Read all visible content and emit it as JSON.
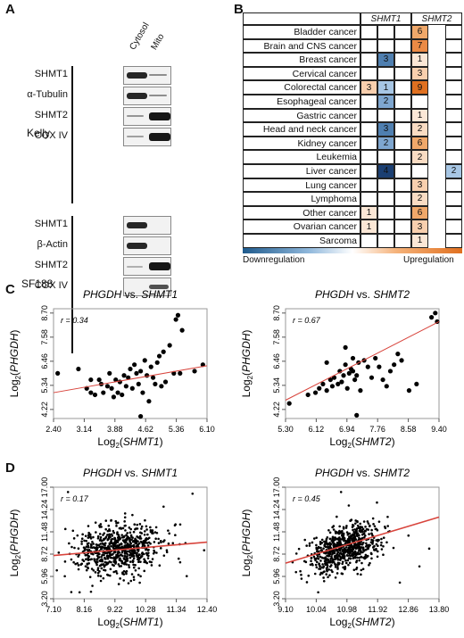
{
  "panel_labels": {
    "a": "A",
    "b": "B",
    "c": "C",
    "d": "D"
  },
  "panel_a": {
    "columns": [
      "Cytosol",
      "Mito"
    ],
    "groups": [
      {
        "name": "Kelly",
        "rows": [
          {
            "label": "SHMT1",
            "bands": [
              0.85,
              0.25
            ]
          },
          {
            "label": "α-Tubulin",
            "bands": [
              0.85,
              0.25
            ]
          },
          {
            "label": "SHMT2",
            "bands": [
              0.2,
              0.95
            ]
          },
          {
            "label": "COX IV",
            "bands": [
              0.15,
              0.95
            ]
          }
        ]
      },
      {
        "name": "SF188",
        "rows": [
          {
            "label": "SHMT1",
            "bands": [
              0.85,
              0.0
            ]
          },
          {
            "label": "β-Actin",
            "bands": [
              0.85,
              0.0
            ]
          },
          {
            "label": "SHMT2",
            "bands": [
              0.05,
              0.95
            ]
          },
          {
            "label": "COX IV",
            "bands": [
              0.0,
              0.6
            ]
          }
        ]
      }
    ]
  },
  "panel_b": {
    "col_headers": [
      "SHMT1",
      "SHMT2"
    ],
    "rows": [
      {
        "label": "Bladder cancer",
        "cells": [
          null,
          null,
          null,
          {
            "v": "6",
            "c": "#f0a86a"
          },
          null
        ]
      },
      {
        "label": "Brain and CNS cancer",
        "cells": [
          null,
          null,
          null,
          {
            "v": "7",
            "c": "#eb8a45"
          },
          null
        ]
      },
      {
        "label": "Breast cancer",
        "cells": [
          null,
          {
            "v": "3",
            "c": "#4f7fb0"
          },
          null,
          {
            "v": "1",
            "c": "#fbe7d6"
          },
          null
        ]
      },
      {
        "label": "Cervical cancer",
        "cells": [
          null,
          null,
          null,
          {
            "v": "3",
            "c": "#f8cfae"
          },
          null
        ]
      },
      {
        "label": "Colorectal cancer",
        "cells": [
          {
            "v": "3",
            "c": "#f8cfae"
          },
          {
            "v": "1",
            "c": "#a7c6e4"
          },
          null,
          {
            "v": "9",
            "c": "#e07020"
          },
          null
        ]
      },
      {
        "label": "Esophageal cancer",
        "cells": [
          null,
          {
            "v": "2",
            "c": "#7ea6cf"
          },
          null,
          null,
          null
        ]
      },
      {
        "label": "Gastric cancer",
        "cells": [
          null,
          null,
          null,
          {
            "v": "1",
            "c": "#fbe7d6"
          },
          null
        ]
      },
      {
        "label": "Head and neck cancer",
        "cells": [
          null,
          {
            "v": "3",
            "c": "#4f7fb0"
          },
          null,
          {
            "v": "2",
            "c": "#f9dcc3"
          },
          null
        ]
      },
      {
        "label": "Kidney cancer",
        "cells": [
          null,
          {
            "v": "2",
            "c": "#7ea6cf"
          },
          null,
          {
            "v": "6",
            "c": "#f0a86a"
          },
          null
        ]
      },
      {
        "label": "Leukemia",
        "cells": [
          null,
          null,
          null,
          {
            "v": "2",
            "c": "#f9dcc3"
          },
          null
        ]
      },
      {
        "label": "Liver cancer",
        "cells": [
          null,
          {
            "v": "4",
            "c": "#1b3f72"
          },
          null,
          null,
          {
            "v": "2",
            "c": "#a7c6e4"
          }
        ]
      },
      {
        "label": "Lung cancer",
        "cells": [
          null,
          null,
          null,
          {
            "v": "3",
            "c": "#f8cfae"
          },
          null
        ]
      },
      {
        "label": "Lymphoma",
        "cells": [
          null,
          null,
          null,
          {
            "v": "2",
            "c": "#f9dcc3"
          },
          null
        ]
      },
      {
        "label": "Other cancer",
        "cells": [
          {
            "v": "1",
            "c": "#fbe7d6"
          },
          null,
          null,
          {
            "v": "6",
            "c": "#f0a86a"
          },
          null
        ]
      },
      {
        "label": "Ovarian cancer",
        "cells": [
          {
            "v": "1",
            "c": "#fbe7d6"
          },
          null,
          null,
          {
            "v": "3",
            "c": "#f8cfae"
          },
          null
        ]
      },
      {
        "label": "Sarcoma",
        "cells": [
          null,
          null,
          null,
          {
            "v": "1",
            "c": "#fbe7d6"
          },
          null
        ]
      }
    ],
    "legend": {
      "low": "Downregulation",
      "high": "Upregulation",
      "colors": [
        "#1e5a8c",
        "#ffffff",
        "#e07020"
      ]
    }
  },
  "chart_data": [
    {
      "type": "scatter",
      "id": "c1",
      "title_parts": [
        "PHGDH",
        " vs. ",
        "SHMT1"
      ],
      "xlabel_pre": "Log",
      "xlabel_sub": "2",
      "xlabel_gene": "SHMT1",
      "ylabel_pre": "Log",
      "ylabel_sub": "2",
      "ylabel_gene": "PHGDH",
      "r_label": "r = 0.34",
      "xticks": [
        "2.40",
        "3.14",
        "3.88",
        "4.62",
        "5.36",
        "6.10"
      ],
      "xlim": [
        2.4,
        6.1
      ],
      "yticks": [
        "4.22",
        "5.34",
        "6.46",
        "7.58",
        "8.70"
      ],
      "ylim": [
        3.8,
        8.9
      ],
      "regression": [
        [
          2.4,
          5.0
        ],
        [
          6.1,
          6.25
        ]
      ],
      "points": [
        [
          2.5,
          5.9
        ],
        [
          3.0,
          6.1
        ],
        [
          3.2,
          5.2
        ],
        [
          3.3,
          5.0
        ],
        [
          3.4,
          4.9
        ],
        [
          3.5,
          5.6
        ],
        [
          3.55,
          5.4
        ],
        [
          3.6,
          5.0
        ],
        [
          3.7,
          5.3
        ],
        [
          3.75,
          5.9
        ],
        [
          3.8,
          5.2
        ],
        [
          3.85,
          4.8
        ],
        [
          3.9,
          5.6
        ],
        [
          3.95,
          5.0
        ],
        [
          4.0,
          5.5
        ],
        [
          4.05,
          4.9
        ],
        [
          4.1,
          5.8
        ],
        [
          4.15,
          5.3
        ],
        [
          4.2,
          5.7
        ],
        [
          4.25,
          6.1
        ],
        [
          4.3,
          5.2
        ],
        [
          4.35,
          6.3
        ],
        [
          4.4,
          5.9
        ],
        [
          4.45,
          5.4
        ],
        [
          4.5,
          6.0
        ],
        [
          4.55,
          5.0
        ],
        [
          4.6,
          6.5
        ],
        [
          4.65,
          5.8
        ],
        [
          4.7,
          4.6
        ],
        [
          4.75,
          6.2
        ],
        [
          4.8,
          5.7
        ],
        [
          4.85,
          5.4
        ],
        [
          4.9,
          6.4
        ],
        [
          4.95,
          6.7
        ],
        [
          5.0,
          5.3
        ],
        [
          5.05,
          6.9
        ],
        [
          5.1,
          5.5
        ],
        [
          5.2,
          7.2
        ],
        [
          5.3,
          5.9
        ],
        [
          5.35,
          8.4
        ],
        [
          5.4,
          8.6
        ],
        [
          5.45,
          5.9
        ],
        [
          5.5,
          7.9
        ],
        [
          5.8,
          6.0
        ],
        [
          6.0,
          6.3
        ],
        [
          4.5,
          3.9
        ],
        [
          3.3,
          5.6
        ]
      ]
    },
    {
      "type": "scatter",
      "id": "c2",
      "title_parts": [
        "PHGDH",
        " vs. ",
        "SHMT2"
      ],
      "xlabel_pre": "Log",
      "xlabel_sub": "2",
      "xlabel_gene": "SHMT2",
      "ylabel_pre": "Log",
      "ylabel_sub": "2",
      "ylabel_gene": "PHGDH",
      "r_label": "r = 0.67",
      "xticks": [
        "5.30",
        "6.12",
        "6.94",
        "7.76",
        "8.58",
        "9.40"
      ],
      "xlim": [
        5.3,
        9.4
      ],
      "yticks": [
        "4.22",
        "5.34",
        "6.46",
        "7.58",
        "8.70"
      ],
      "ylim": [
        3.8,
        8.9
      ],
      "regression": [
        [
          5.3,
          4.65
        ],
        [
          9.4,
          8.3
        ]
      ],
      "points": [
        [
          5.4,
          4.5
        ],
        [
          5.9,
          4.9
        ],
        [
          6.1,
          5.0
        ],
        [
          6.2,
          5.2
        ],
        [
          6.3,
          5.4
        ],
        [
          6.4,
          5.1
        ],
        [
          6.5,
          5.6
        ],
        [
          6.55,
          5.3
        ],
        [
          6.6,
          5.7
        ],
        [
          6.7,
          5.4
        ],
        [
          6.75,
          6.0
        ],
        [
          6.8,
          5.5
        ],
        [
          6.85,
          5.8
        ],
        [
          6.9,
          6.3
        ],
        [
          6.95,
          5.2
        ],
        [
          7.0,
          5.9
        ],
        [
          7.05,
          6.1
        ],
        [
          7.1,
          6.0
        ],
        [
          7.15,
          5.6
        ],
        [
          7.2,
          5.8
        ],
        [
          7.25,
          6.4
        ],
        [
          7.3,
          5.1
        ],
        [
          7.4,
          6.5
        ],
        [
          7.5,
          6.2
        ],
        [
          7.6,
          5.7
        ],
        [
          7.7,
          6.6
        ],
        [
          7.8,
          6.2
        ],
        [
          7.9,
          5.6
        ],
        [
          8.0,
          5.3
        ],
        [
          8.1,
          6.0
        ],
        [
          8.2,
          6.3
        ],
        [
          8.3,
          6.8
        ],
        [
          8.4,
          6.5
        ],
        [
          8.6,
          5.1
        ],
        [
          8.8,
          5.4
        ],
        [
          9.2,
          8.5
        ],
        [
          9.3,
          8.7
        ],
        [
          9.35,
          8.3
        ],
        [
          7.2,
          3.95
        ],
        [
          6.9,
          7.1
        ],
        [
          6.4,
          6.4
        ],
        [
          7.1,
          6.6
        ]
      ]
    },
    {
      "type": "scatter",
      "id": "d1",
      "title_parts": [
        "PHGDH",
        " vs. ",
        "SHMT1"
      ],
      "xlabel_pre": "Log",
      "xlabel_sub": "2",
      "xlabel_gene": "SHMT1",
      "ylabel_pre": "Log",
      "ylabel_sub": "2",
      "ylabel_gene": "PHGDH",
      "r_label": "r = 0.17",
      "xticks": [
        "7.10",
        "8.16",
        "9.22",
        "10.28",
        "11.34",
        "12.40"
      ],
      "xlim": [
        7.1,
        12.4
      ],
      "yticks": [
        "3.20",
        "5.96",
        "8.72",
        "11.48",
        "14.24",
        "17.00"
      ],
      "ylim": [
        3.2,
        17.0
      ],
      "regression": [
        [
          7.1,
          8.55
        ],
        [
          12.4,
          10.2
        ]
      ],
      "cloud": {
        "n": 700,
        "cx": 9.3,
        "cy": 9.3,
        "sx": 0.75,
        "sy": 1.6,
        "rho": 0.17,
        "seed": 11
      },
      "points": [
        [
          7.6,
          16.4
        ],
        [
          11.9,
          16.2
        ],
        [
          12.3,
          9.2
        ],
        [
          11.7,
          6.0
        ],
        [
          8.0,
          4.0
        ],
        [
          10.9,
          14.6
        ]
      ]
    },
    {
      "type": "scatter",
      "id": "d2",
      "title_parts": [
        "PHGDH",
        " vs. ",
        "SHMT2"
      ],
      "xlabel_pre": "Log",
      "xlabel_sub": "2",
      "xlabel_gene": "SHMT2",
      "ylabel_pre": "Log",
      "ylabel_sub": "2",
      "ylabel_gene": "PHGDH",
      "r_label": "r = 0.45",
      "xticks": [
        "9.10",
        "10.04",
        "10.98",
        "11.92",
        "12.86",
        "13.80"
      ],
      "xlim": [
        9.1,
        13.8
      ],
      "yticks": [
        "3.20",
        "5.96",
        "8.72",
        "11.48",
        "14.24",
        "17.00"
      ],
      "ylim": [
        3.2,
        17.0
      ],
      "regression": [
        [
          9.1,
          7.6
        ],
        [
          13.8,
          13.3
        ]
      ],
      "cloud": {
        "n": 700,
        "cx": 10.9,
        "cy": 9.5,
        "sx": 0.55,
        "sy": 1.55,
        "rho": 0.45,
        "seed": 23
      },
      "points": [
        [
          10.8,
          16.4
        ],
        [
          13.5,
          9.4
        ],
        [
          13.2,
          7.2
        ],
        [
          12.6,
          5.2
        ],
        [
          10.1,
          4.0
        ],
        [
          11.9,
          15.1
        ]
      ]
    }
  ]
}
